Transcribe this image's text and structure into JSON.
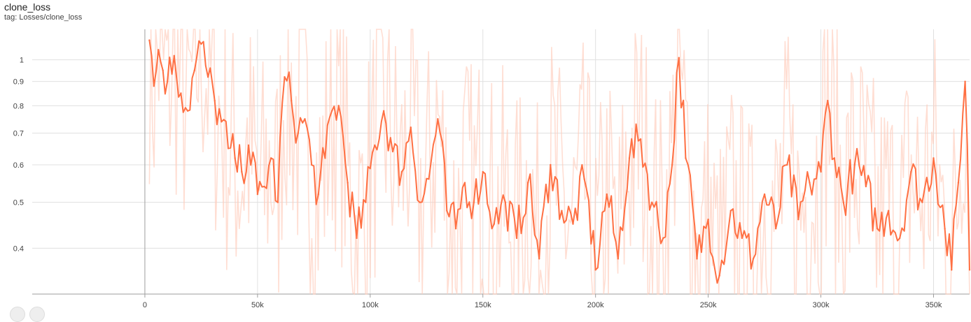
{
  "header": {
    "title": "clone_loss",
    "tag": "tag: Losses/clone_loss"
  },
  "chart_data": {
    "type": "line",
    "title": "clone_loss",
    "xlabel": "",
    "ylabel": "",
    "y_scale": "log",
    "xlim": [
      -50000,
      366000
    ],
    "ylim": [
      0.32,
      1.16
    ],
    "x_ticks": [
      0,
      50000,
      100000,
      150000,
      200000,
      250000,
      300000,
      350000
    ],
    "x_tick_labels": [
      "0",
      "50k",
      "100k",
      "150k",
      "200k",
      "250k",
      "300k",
      "350k"
    ],
    "y_ticks": [
      0.4,
      0.5,
      0.6,
      0.7,
      0.8,
      0.9,
      1
    ],
    "y_tick_labels": [
      "0.4",
      "0.5",
      "0.6",
      "0.7",
      "0.8",
      "0.9",
      "1"
    ],
    "grid": true,
    "smoothed_color": "#ff7043",
    "raw_color": "#ffccbc",
    "series": [
      {
        "role": "smoothed",
        "x": [
          2000,
          4000,
          6000,
          8000,
          10000,
          13000,
          16000,
          19000,
          22000,
          25000,
          28000,
          31000,
          34000,
          37000,
          40000,
          43000,
          46000,
          50000,
          53000,
          56000,
          59000,
          62000,
          65000,
          68000,
          71000,
          74000,
          77000,
          80000,
          83000,
          86000,
          90000,
          94000,
          98000,
          102000,
          106000,
          110000,
          114000,
          118000,
          122000,
          126000,
          130000,
          134000,
          138000,
          142000,
          146000,
          150000,
          155000,
          160000,
          165000,
          170000,
          175000,
          180000,
          185000,
          190000,
          195000,
          200000,
          205000,
          210000,
          215000,
          220000,
          225000,
          230000,
          234000,
          237000,
          240000,
          245000,
          250000,
          255000,
          260000,
          265000,
          270000,
          275000,
          280000,
          285000,
          290000,
          295000,
          300000,
          303000,
          306000,
          310000,
          315000,
          320000,
          325000,
          330000,
          335000,
          340000,
          345000,
          350000,
          355000,
          358000,
          361000,
          364000,
          366000
        ],
        "y": [
          1.1,
          0.88,
          1.05,
          0.95,
          0.9,
          1.02,
          0.85,
          0.78,
          0.95,
          1.08,
          0.92,
          0.82,
          0.74,
          0.65,
          0.62,
          0.58,
          0.66,
          0.52,
          0.54,
          0.62,
          0.5,
          0.92,
          0.82,
          0.7,
          0.75,
          0.6,
          0.52,
          0.62,
          0.78,
          0.8,
          0.55,
          0.42,
          0.5,
          0.66,
          0.78,
          0.64,
          0.58,
          0.72,
          0.5,
          0.56,
          0.75,
          0.48,
          0.44,
          0.55,
          0.5,
          0.58,
          0.45,
          0.5,
          0.42,
          0.55,
          0.38,
          0.6,
          0.48,
          0.45,
          0.56,
          0.36,
          0.52,
          0.38,
          0.62,
          0.68,
          0.5,
          0.42,
          0.6,
          1.01,
          0.62,
          0.38,
          0.46,
          0.35,
          0.48,
          0.42,
          0.38,
          0.52,
          0.44,
          0.6,
          0.46,
          0.55,
          0.58,
          0.82,
          0.62,
          0.5,
          0.6,
          0.54,
          0.44,
          0.48,
          0.42,
          0.58,
          0.5,
          0.62,
          0.44,
          0.36,
          0.55,
          0.9,
          0.36
        ]
      }
    ]
  }
}
